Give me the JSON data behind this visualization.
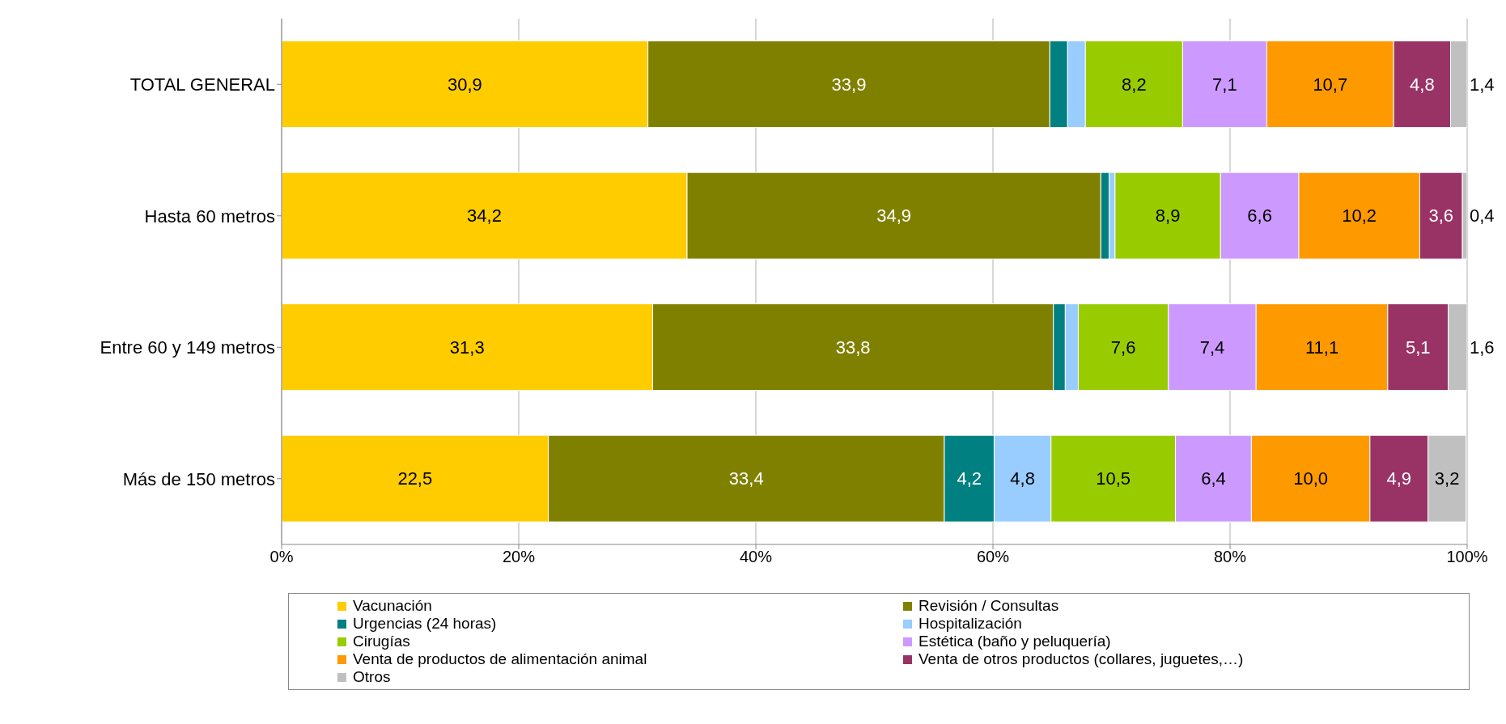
{
  "chart_data": {
    "type": "bar",
    "orientation": "horizontal",
    "stacked": true,
    "categories": [
      "TOTAL GENERAL",
      "Hasta 60 metros",
      "Entre 60 y 149 metros",
      "Más de 150 metros"
    ],
    "series": [
      {
        "name": "Vacunación",
        "color": "#ffcc00",
        "values": [
          30.9,
          34.2,
          31.3,
          22.5
        ],
        "value_labels": [
          "30,9",
          "34,2",
          "31,3",
          "22,5"
        ]
      },
      {
        "name": "Revisión / Consultas",
        "color": "#808000",
        "values": [
          33.9,
          34.9,
          33.8,
          33.4
        ],
        "value_labels": [
          "33,9",
          "34,9",
          "33,8",
          "33,4"
        ]
      },
      {
        "name": "Urgencias (24 horas)",
        "color": "#008080",
        "values": [
          1.5,
          0.7,
          1.0,
          4.2
        ],
        "value_labels": [
          null,
          null,
          null,
          "4,2"
        ]
      },
      {
        "name": "Hospitalización",
        "color": "#99ccff",
        "values": [
          1.5,
          0.5,
          1.1,
          4.8
        ],
        "value_labels": [
          null,
          null,
          null,
          "4,8"
        ]
      },
      {
        "name": "Cirugías",
        "color": "#99cc00",
        "values": [
          8.2,
          8.9,
          7.6,
          10.5
        ],
        "value_labels": [
          "8,2",
          "8,9",
          "7,6",
          "10,5"
        ]
      },
      {
        "name": "Estética (baño y peluquería)",
        "color": "#cc99ff",
        "values": [
          7.1,
          6.6,
          7.4,
          6.4
        ],
        "value_labels": [
          "7,1",
          "6,6",
          "7,4",
          "6,4"
        ]
      },
      {
        "name": "Venta de productos de alimentación animal",
        "color": "#ff9900",
        "values": [
          10.7,
          10.2,
          11.1,
          10.0
        ],
        "value_labels": [
          "10,7",
          "10,2",
          "11,1",
          "10,0"
        ]
      },
      {
        "name": "Venta de otros productos (collares, juguetes,…)",
        "color": "#993366",
        "values": [
          4.8,
          3.6,
          5.1,
          4.9
        ],
        "value_labels": [
          "4,8",
          "3,6",
          "5,1",
          "4,9"
        ]
      },
      {
        "name": "Otros",
        "color": "#c0c0c0",
        "values": [
          1.4,
          0.4,
          1.6,
          3.2
        ],
        "value_labels": [
          "1,4",
          "0,4",
          "1,6",
          "3,2"
        ]
      }
    ],
    "xlim": [
      0,
      100
    ],
    "xticks": [
      {
        "value": 0,
        "label": "0%"
      },
      {
        "value": 20,
        "label": "20%"
      },
      {
        "value": 40,
        "label": "40%"
      },
      {
        "value": 60,
        "label": "60%"
      },
      {
        "value": 80,
        "label": "80%"
      },
      {
        "value": 100,
        "label": "100%"
      }
    ],
    "grid": "x",
    "legend": "bottom"
  }
}
